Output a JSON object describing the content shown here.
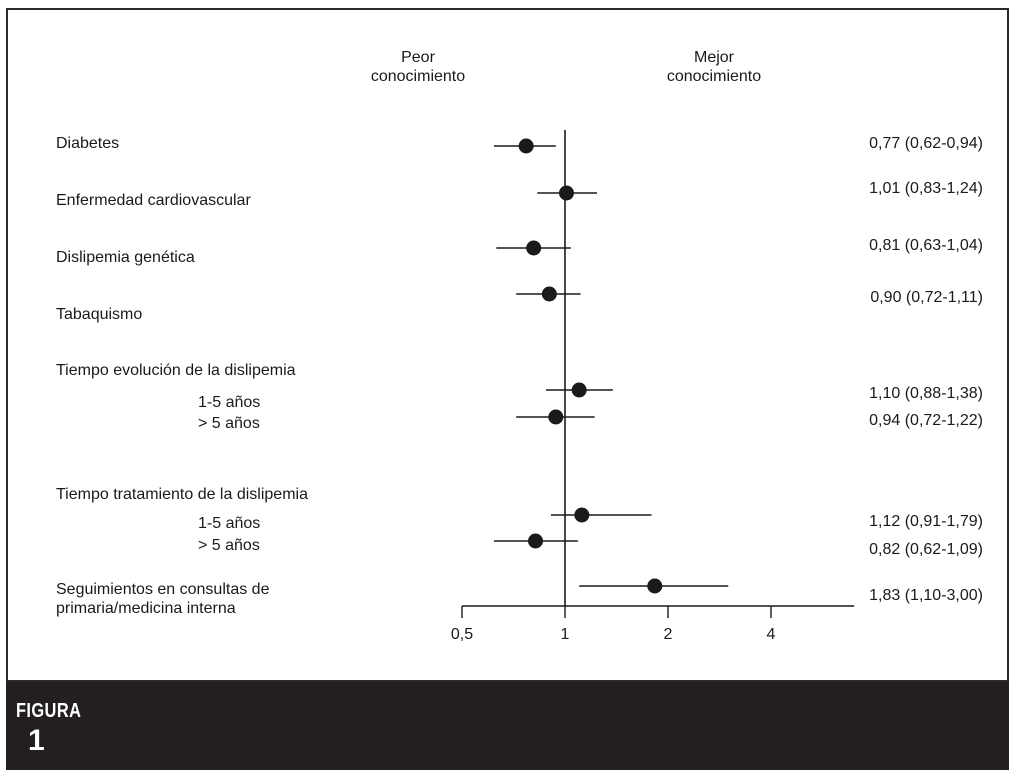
{
  "chart_data": {
    "type": "forest",
    "x_scale": "log",
    "xlim": [
      0.5,
      7.0
    ],
    "reference_value": 1,
    "x_ticks": [
      0.5,
      1,
      2,
      4
    ],
    "x_tick_labels": [
      "0,5",
      "1",
      "2",
      "4"
    ],
    "left_header": "Peor\nconocimiento",
    "right_header": "Mejor\nconocimiento",
    "groups": [
      {
        "label": "Diabetes",
        "rows": [
          {
            "sublabel": "",
            "point": 0.77,
            "low": 0.62,
            "high": 0.94,
            "text": "0,77 (0,62-0,94)"
          }
        ]
      },
      {
        "label": "Enfermedad cardiovascular",
        "rows": [
          {
            "sublabel": "",
            "point": 1.01,
            "low": 0.83,
            "high": 1.24,
            "text": "1,01 (0,83-1,24)"
          }
        ]
      },
      {
        "label": "Dislipemia genética",
        "rows": [
          {
            "sublabel": "",
            "point": 0.81,
            "low": 0.63,
            "high": 1.04,
            "text": "0,81 (0,63-1,04)"
          }
        ]
      },
      {
        "label": "Tabaquismo",
        "rows": [
          {
            "sublabel": "",
            "point": 0.9,
            "low": 0.72,
            "high": 1.11,
            "text": "0,90 (0,72-1,11)"
          }
        ]
      },
      {
        "label": "Tiempo evolución de la dislipemia",
        "rows": [
          {
            "sublabel": "1-5 años",
            "point": 1.1,
            "low": 0.88,
            "high": 1.38,
            "text": "1,10 (0,88-1,38)"
          },
          {
            "sublabel": "> 5 años",
            "point": 0.94,
            "low": 0.72,
            "high": 1.22,
            "text": "0,94 (0,72-1,22)"
          }
        ]
      },
      {
        "label": "Tiempo tratamiento de la dislipemia",
        "rows": [
          {
            "sublabel": "1-5 años",
            "point": 1.12,
            "low": 0.91,
            "high": 1.79,
            "text": "1,12 (0,91-1,79)"
          },
          {
            "sublabel": "> 5 años",
            "point": 0.82,
            "low": 0.62,
            "high": 1.09,
            "text": "0,82 (0,62-1,09)"
          }
        ]
      },
      {
        "label": "Seguimientos en consultas de\nprimaria/medicina interna",
        "rows": [
          {
            "sublabel": "",
            "point": 1.83,
            "low": 1.1,
            "high": 3.0,
            "text": "1,83  (1,10-3,00)"
          }
        ]
      }
    ]
  },
  "caption": {
    "figure_word": "FIGURA",
    "figure_number": "1"
  },
  "colors": {
    "ink": "#1a1a1a",
    "panel_border": "#2a2a2a",
    "caption_bar": "#231f20",
    "caption_text": "#ffffff"
  }
}
